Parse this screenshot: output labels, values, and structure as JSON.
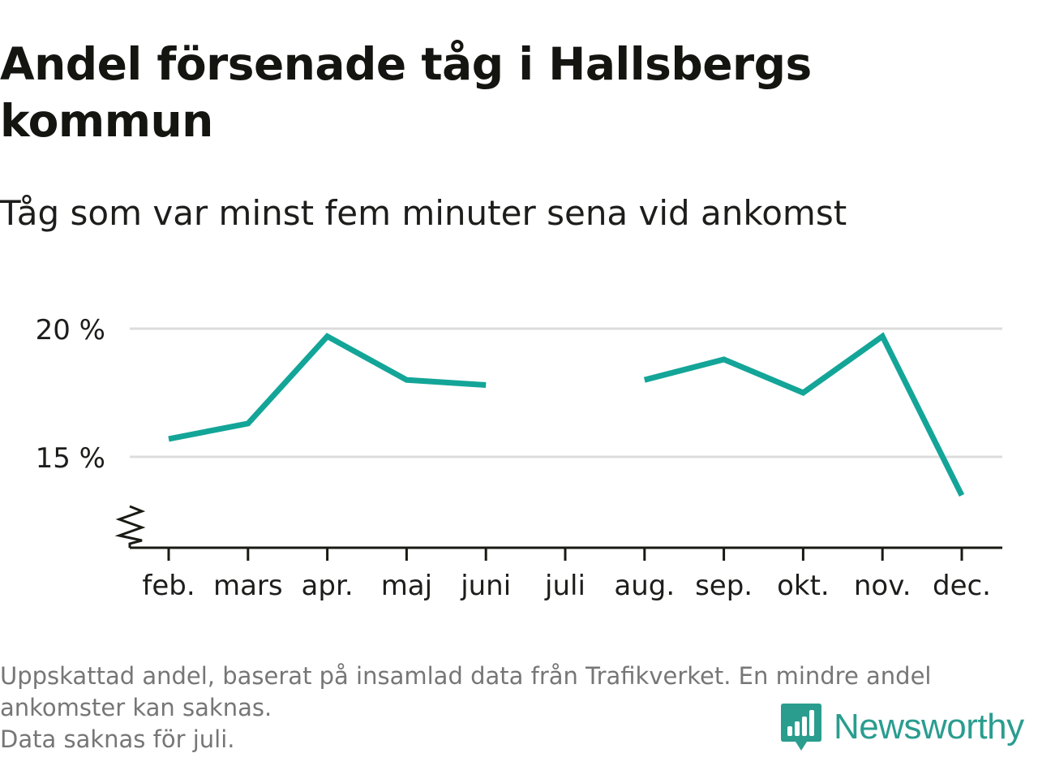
{
  "title": "Andel försenade tåg i Hallsbergs kommun",
  "subtitle": "Tåg som var minst fem minuter sena vid ankomst",
  "footnote": {
    "line1": "Uppskattad andel, baserat på insamlad data från Trafikverket. En mindre andel",
    "line2": "ankomster kan saknas.",
    "line3": "Data saknas för juli."
  },
  "logo": {
    "text": "Newsworthy",
    "icon": "newsworthy-bar-chart-icon",
    "color": "#2a9d8f"
  },
  "colors": {
    "line": "#13a598",
    "grid": "#dcdcdc",
    "axis": "#1a1a14",
    "text": "#1d1d1b"
  },
  "chart_data": {
    "type": "line",
    "categories": [
      "feb.",
      "mars",
      "apr.",
      "maj",
      "juni",
      "juli",
      "aug.",
      "sep.",
      "okt.",
      "nov.",
      "dec."
    ],
    "values": [
      15.7,
      16.3,
      19.7,
      18.0,
      17.8,
      null,
      18.0,
      18.8,
      17.5,
      19.7,
      13.5
    ],
    "y_ticks": [
      15,
      20
    ],
    "y_tick_labels": [
      "15 %",
      "20 %"
    ],
    "ylim": [
      11.5,
      20.5
    ],
    "y_axis_break": true,
    "grid": true,
    "legend": "none"
  }
}
